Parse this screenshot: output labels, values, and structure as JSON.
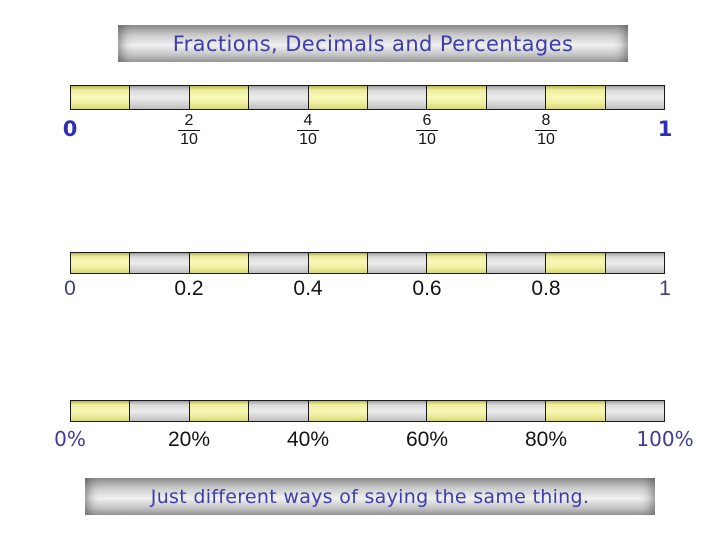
{
  "title": {
    "text": "Fractions, Decimals and Percentages"
  },
  "footer": {
    "text": "Just different ways of saying the same thing."
  },
  "colors": {
    "heading_text": "#3d3dae",
    "label_black": "#141414",
    "segment_border": "#1a1a1a",
    "segment_yellow": "#f6f6ae",
    "segment_gray": "#e6e6e6",
    "fraction_end_blue": "#2f2fb4",
    "decimal_end_blue": "#3f3f7e",
    "percent_end_blue": "#3c3c9a"
  },
  "bars": [
    {
      "name": "fractions-line",
      "segments": 10,
      "labels": [
        {
          "text": "0",
          "pos": 0,
          "style": "end-bold",
          "color": "#2f2fb4"
        },
        {
          "fraction": {
            "num": "2",
            "den": "10"
          },
          "pos": 0.2,
          "style": "fraction"
        },
        {
          "fraction": {
            "num": "4",
            "den": "10"
          },
          "pos": 0.4,
          "style": "fraction"
        },
        {
          "fraction": {
            "num": "6",
            "den": "10"
          },
          "pos": 0.6,
          "style": "fraction"
        },
        {
          "fraction": {
            "num": "8",
            "den": "10"
          },
          "pos": 0.8,
          "style": "fraction"
        },
        {
          "text": "1",
          "pos": 1,
          "style": "end-bold",
          "color": "#2f2fb4"
        }
      ]
    },
    {
      "name": "decimals-line",
      "segments": 10,
      "labels": [
        {
          "text": "0",
          "pos": 0,
          "style": "end-plain",
          "color": "#3f3f7e"
        },
        {
          "text": "0.2",
          "pos": 0.2,
          "style": "mid"
        },
        {
          "text": "0.4",
          "pos": 0.4,
          "style": "mid"
        },
        {
          "text": "0.6",
          "pos": 0.6,
          "style": "mid"
        },
        {
          "text": "0.8",
          "pos": 0.8,
          "style": "mid"
        },
        {
          "text": "1",
          "pos": 1,
          "style": "end-plain",
          "color": "#3f3f7e"
        }
      ]
    },
    {
      "name": "percentages-line",
      "segments": 10,
      "labels": [
        {
          "text": "0%",
          "pos": 0,
          "style": "end-comic",
          "color": "#3c3c9a"
        },
        {
          "text": "20%",
          "pos": 0.2,
          "style": "mid"
        },
        {
          "text": "40%",
          "pos": 0.4,
          "style": "mid"
        },
        {
          "text": "60%",
          "pos": 0.6,
          "style": "mid"
        },
        {
          "text": "80%",
          "pos": 0.8,
          "style": "mid"
        },
        {
          "text": "100%",
          "pos": 1,
          "style": "end-comic",
          "color": "#3c3c9a"
        }
      ]
    }
  ]
}
